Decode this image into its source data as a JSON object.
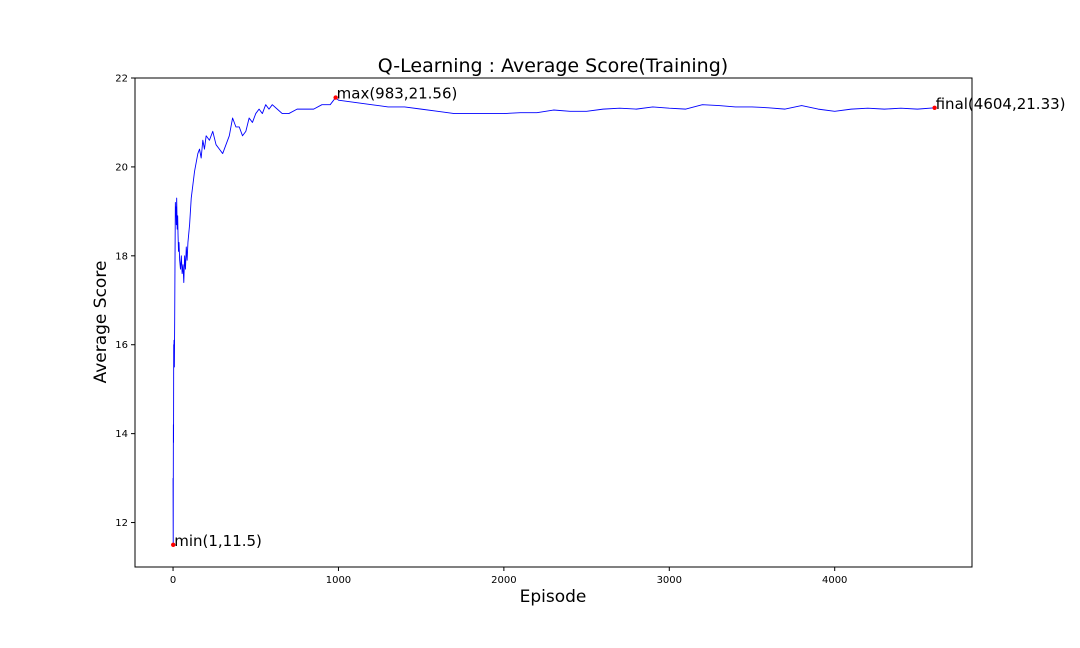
{
  "chart_data": {
    "type": "line",
    "title": "Q-Learning : Average Score(Training)",
    "xlabel": "Episode",
    "ylabel": "Average Score",
    "xlim": [
      -230,
      4830
    ],
    "ylim": [
      11.0,
      22.0
    ],
    "xticks": [
      0,
      1000,
      2000,
      3000,
      4000
    ],
    "yticks": [
      12,
      14,
      16,
      18,
      20,
      22
    ],
    "grid": false,
    "line_color": "#0000ff",
    "marker_color": "#ff0000",
    "series": [
      {
        "x": [
          0,
          1,
          2,
          3,
          4,
          5,
          6,
          8,
          10,
          12,
          14,
          16,
          18,
          20,
          22,
          25,
          28,
          30,
          33,
          36,
          40,
          45,
          50,
          55,
          60,
          65,
          70,
          75,
          80,
          85,
          90,
          95,
          100,
          110,
          120,
          130,
          140,
          150,
          160,
          170,
          180,
          190,
          200,
          220,
          240,
          260,
          280,
          300,
          320,
          340,
          360,
          380,
          400,
          420,
          440,
          460,
          480,
          500,
          520,
          540,
          560,
          580,
          600,
          630,
          660,
          700,
          750,
          800,
          850,
          900,
          950,
          983,
          1000,
          1100,
          1200,
          1300,
          1400,
          1500,
          1600,
          1700,
          1800,
          1900,
          2000,
          2100,
          2200,
          2300,
          2400,
          2500,
          2600,
          2700,
          2800,
          2900,
          3000,
          3100,
          3200,
          3300,
          3400,
          3500,
          3600,
          3700,
          3800,
          3900,
          4000,
          4100,
          4200,
          4300,
          4400,
          4500,
          4604
        ],
        "y": [
          13.0,
          11.5,
          14.2,
          13.8,
          16.0,
          15.8,
          16.1,
          15.5,
          16.6,
          18.0,
          19.2,
          18.9,
          19.1,
          18.7,
          19.3,
          18.6,
          18.9,
          18.5,
          18.1,
          18.3,
          17.9,
          17.7,
          18.0,
          17.6,
          17.8,
          17.4,
          18.0,
          17.7,
          18.2,
          17.9,
          18.3,
          18.5,
          18.7,
          19.3,
          19.6,
          19.9,
          20.1,
          20.3,
          20.4,
          20.2,
          20.6,
          20.4,
          20.7,
          20.6,
          20.8,
          20.5,
          20.4,
          20.3,
          20.5,
          20.7,
          21.1,
          20.9,
          20.9,
          20.7,
          20.8,
          21.1,
          21.0,
          21.2,
          21.3,
          21.2,
          21.4,
          21.3,
          21.4,
          21.3,
          21.2,
          21.2,
          21.3,
          21.3,
          21.3,
          21.4,
          21.4,
          21.56,
          21.5,
          21.45,
          21.4,
          21.35,
          21.35,
          21.3,
          21.25,
          21.2,
          21.2,
          21.2,
          21.2,
          21.22,
          21.22,
          21.28,
          21.25,
          21.25,
          21.3,
          21.32,
          21.3,
          21.35,
          21.32,
          21.3,
          21.4,
          21.38,
          21.35,
          21.35,
          21.33,
          21.3,
          21.38,
          21.3,
          21.25,
          21.3,
          21.32,
          21.3,
          21.32,
          21.3,
          21.33
        ]
      }
    ],
    "annotations": [
      {
        "text": "min(1,11.5)",
        "x": 1,
        "y": 11.5
      },
      {
        "text": "max(983,21.56)",
        "x": 983,
        "y": 21.56
      },
      {
        "text": "final(4604,21.33)",
        "x": 4604,
        "y": 21.33
      }
    ]
  }
}
